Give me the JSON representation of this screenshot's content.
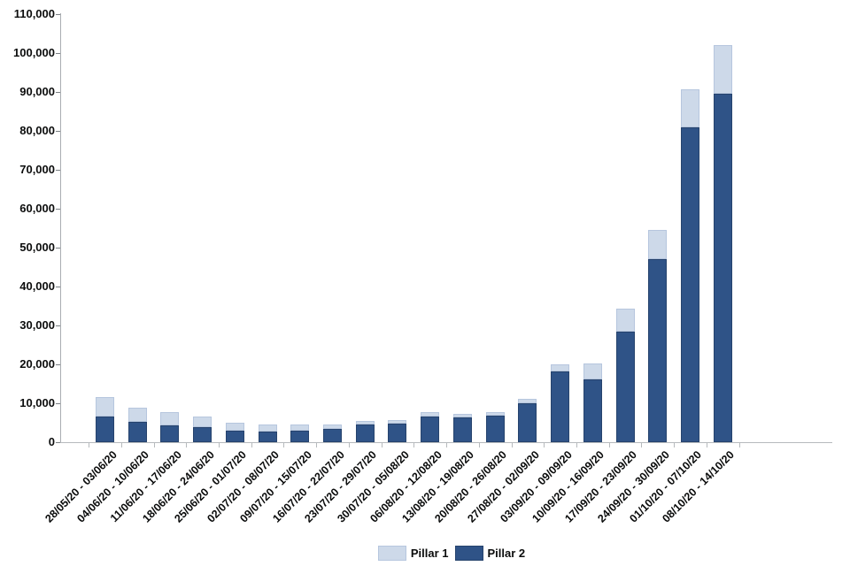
{
  "chart_data": {
    "type": "bar",
    "stacked": true,
    "stack_order_bottom_to_top": [
      "Pillar 2",
      "Pillar 1"
    ],
    "title": "",
    "xlabel": "",
    "ylabel": "",
    "ylim": [
      0,
      110000
    ],
    "ytick_step": 10000,
    "ytick_labels": [
      "0",
      "10,000",
      "20,000",
      "30,000",
      "40,000",
      "50,000",
      "60,000",
      "70,000",
      "80,000",
      "90,000",
      "100,000",
      "110,000"
    ],
    "grid": false,
    "legend_position": "bottom-center",
    "categories": [
      "28/05/20 - 03/06/20",
      "04/06/20 - 10/06/20",
      "11/06/20 - 17/06/20",
      "18/06/20 - 24/06/20",
      "25/06/20 - 01/07/20",
      "02/07/20 - 08/07/20",
      "09/07/20 - 15/07/20",
      "16/07/20 - 22/07/20",
      "23/07/20 - 29/07/20",
      "30/07/20 - 05/08/20",
      "06/08/20 - 12/08/20",
      "13/08/20 - 19/08/20",
      "20/08/20 - 26/08/20",
      "27/08/20 - 02/09/20",
      "03/09/20 - 09/09/20",
      "10/09/20 - 16/09/20",
      "17/09/20 - 23/09/20",
      "24/09/20 - 30/09/20",
      "01/10/20 - 07/10/20",
      "08/10/20 - 14/10/20"
    ],
    "series": [
      {
        "name": "Pillar 1",
        "color": "#cdd9e9",
        "border_color": "#b6c6de",
        "values": [
          4900,
          3600,
          3300,
          2700,
          2000,
          1700,
          1600,
          1250,
          1050,
          900,
          1150,
          1000,
          900,
          1300,
          1750,
          4100,
          6050,
          7450,
          9800,
          12500
        ]
      },
      {
        "name": "Pillar 2",
        "color": "#2f5387",
        "border_color": "#26436d",
        "values": [
          6700,
          5200,
          4400,
          3800,
          3000,
          2800,
          2950,
          3350,
          4500,
          4850,
          6500,
          6300,
          6900,
          9900,
          18200,
          16100,
          28300,
          47100,
          80900,
          89500
        ]
      }
    ]
  },
  "legend": {
    "items": [
      {
        "label": "Pillar 1"
      },
      {
        "label": "Pillar 2"
      }
    ]
  }
}
